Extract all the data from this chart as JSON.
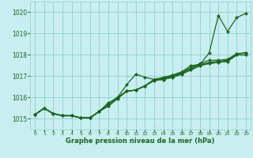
{
  "background_color": "#c8eef0",
  "grid_color": "#8ecece",
  "line_color": "#1a6620",
  "marker_color": "#1a6620",
  "xlabel": "Graphe pression niveau de la mer (hPa)",
  "xlim": [
    -0.5,
    23.5
  ],
  "ylim": [
    1014.5,
    1020.5
  ],
  "yticks": [
    1015,
    1016,
    1017,
    1018,
    1019,
    1020
  ],
  "xticks": [
    0,
    1,
    2,
    3,
    4,
    5,
    6,
    7,
    8,
    9,
    10,
    11,
    12,
    13,
    14,
    15,
    16,
    17,
    18,
    19,
    20,
    21,
    22,
    23
  ],
  "lines_data": [
    {
      "x": [
        0,
        1,
        2,
        3,
        4,
        5,
        6,
        7,
        8,
        9,
        10,
        11,
        12,
        13,
        14,
        15,
        16,
        17,
        18,
        19,
        20,
        21,
        22,
        23
      ],
      "y": [
        1015.2,
        1015.5,
        1015.25,
        1015.15,
        1015.15,
        1015.05,
        1015.05,
        1015.35,
        1015.75,
        1016.0,
        1016.6,
        1017.1,
        1016.95,
        1016.85,
        1016.95,
        1017.05,
        1017.2,
        1017.5,
        1017.55,
        1018.1,
        1019.85,
        1019.1,
        1019.75,
        1019.95
      ]
    },
    {
      "x": [
        0,
        1,
        2,
        3,
        4,
        5,
        6,
        7,
        8,
        9,
        10,
        11,
        12,
        13,
        14,
        15,
        16,
        17,
        18,
        19,
        20,
        21,
        22,
        23
      ],
      "y": [
        1015.2,
        1015.5,
        1015.25,
        1015.15,
        1015.15,
        1015.05,
        1015.05,
        1015.35,
        1015.7,
        1016.0,
        1016.3,
        1016.35,
        1016.55,
        1016.85,
        1016.9,
        1017.05,
        1017.2,
        1017.4,
        1017.6,
        1017.75,
        1017.75,
        1017.8,
        1018.05,
        1018.1
      ]
    },
    {
      "x": [
        0,
        1,
        2,
        3,
        4,
        5,
        6,
        7,
        8,
        9,
        10,
        11,
        12,
        13,
        14,
        15,
        16,
        17,
        18,
        19,
        20,
        21,
        22,
        23
      ],
      "y": [
        1015.2,
        1015.5,
        1015.25,
        1015.15,
        1015.15,
        1015.05,
        1015.05,
        1015.35,
        1015.7,
        1016.0,
        1016.3,
        1016.35,
        1016.55,
        1016.85,
        1016.9,
        1017.0,
        1017.15,
        1017.35,
        1017.55,
        1017.65,
        1017.7,
        1017.75,
        1018.05,
        1018.1
      ]
    },
    {
      "x": [
        0,
        1,
        2,
        3,
        4,
        5,
        6,
        7,
        8,
        9,
        10,
        11,
        12,
        13,
        14,
        15,
        16,
        17,
        18,
        19,
        20,
        21,
        22,
        23
      ],
      "y": [
        1015.2,
        1015.5,
        1015.25,
        1015.15,
        1015.15,
        1015.05,
        1015.05,
        1015.35,
        1015.6,
        1015.95,
        1016.3,
        1016.35,
        1016.55,
        1016.8,
        1016.85,
        1016.95,
        1017.1,
        1017.3,
        1017.5,
        1017.6,
        1017.65,
        1017.7,
        1018.0,
        1018.0
      ]
    },
    {
      "x": [
        0,
        1,
        2,
        3,
        4,
        5,
        6,
        7,
        8,
        9,
        10,
        11,
        12,
        13,
        14,
        15,
        16,
        17,
        18,
        19,
        20,
        21,
        22,
        23
      ],
      "y": [
        1015.2,
        1015.5,
        1015.25,
        1015.15,
        1015.15,
        1015.05,
        1015.05,
        1015.35,
        1015.6,
        1015.95,
        1016.3,
        1016.35,
        1016.55,
        1016.8,
        1016.85,
        1016.95,
        1017.1,
        1017.3,
        1017.5,
        1017.6,
        1017.65,
        1017.7,
        1018.0,
        1018.0
      ]
    }
  ]
}
